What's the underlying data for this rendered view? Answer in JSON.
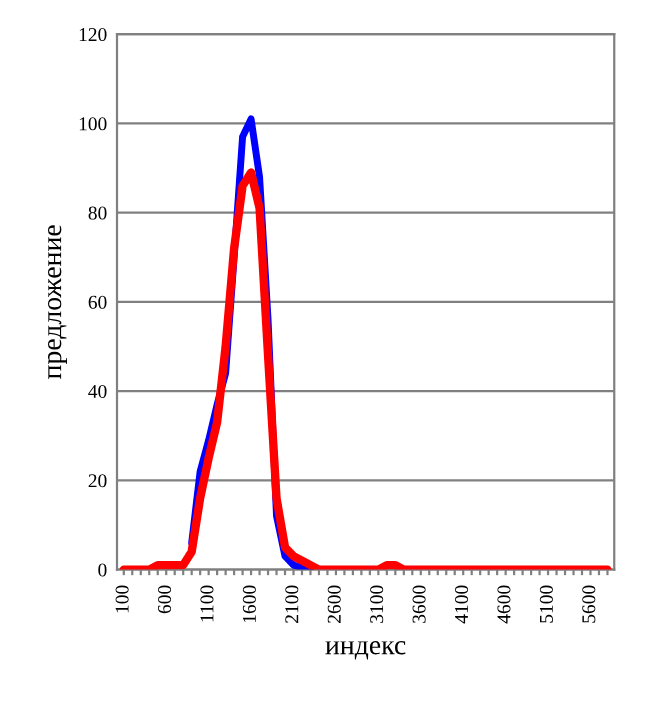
{
  "chart_data": {
    "type": "line",
    "xlabel": "индекс",
    "ylabel": "предложение",
    "categories": [
      "100",
      null,
      null,
      null,
      null,
      "600",
      null,
      null,
      null,
      null,
      "1100",
      null,
      null,
      null,
      null,
      "1600",
      null,
      null,
      null,
      null,
      "2100",
      null,
      null,
      null,
      null,
      "2600",
      null,
      null,
      null,
      null,
      "3100",
      null,
      null,
      null,
      null,
      "3600",
      null,
      null,
      null,
      null,
      "4100",
      null,
      null,
      null,
      null,
      "4600",
      null,
      null,
      null,
      null,
      "5100",
      null,
      null,
      null,
      null,
      "5600",
      null,
      null
    ],
    "series": [
      {
        "color": "#0000ff",
        "values": [
          null,
          null,
          null,
          null,
          null,
          null,
          null,
          null,
          6,
          22,
          29,
          37,
          44,
          70,
          97,
          101,
          88,
          56,
          12,
          3,
          1,
          0.5,
          0,
          null,
          null,
          null,
          null,
          null,
          null,
          null,
          null,
          null,
          null,
          null,
          null,
          null,
          null,
          null,
          null,
          null,
          null,
          null,
          null,
          null,
          null,
          null,
          null,
          null,
          null,
          null,
          null,
          null,
          null,
          null,
          null,
          null,
          null,
          null
        ]
      },
      {
        "color": "#ff0000",
        "values": [
          0,
          0,
          0,
          0,
          1,
          1,
          1,
          1,
          4,
          16,
          25,
          33,
          50,
          72,
          86,
          89,
          81,
          48,
          16,
          5,
          3,
          2,
          1,
          0,
          0,
          0,
          0,
          0,
          0,
          0,
          0,
          1,
          1,
          0,
          0,
          0,
          0,
          0,
          0,
          0,
          0,
          0,
          0,
          0,
          0,
          0,
          0,
          0,
          0,
          0,
          0,
          0,
          0,
          0,
          0,
          0,
          0,
          0
        ]
      }
    ],
    "ylim": [
      0,
      120
    ],
    "yticks": [
      0,
      20,
      40,
      60,
      80,
      100,
      120
    ],
    "grid": "y",
    "legend": false,
    "marker": "none",
    "line_style": "solid"
  }
}
